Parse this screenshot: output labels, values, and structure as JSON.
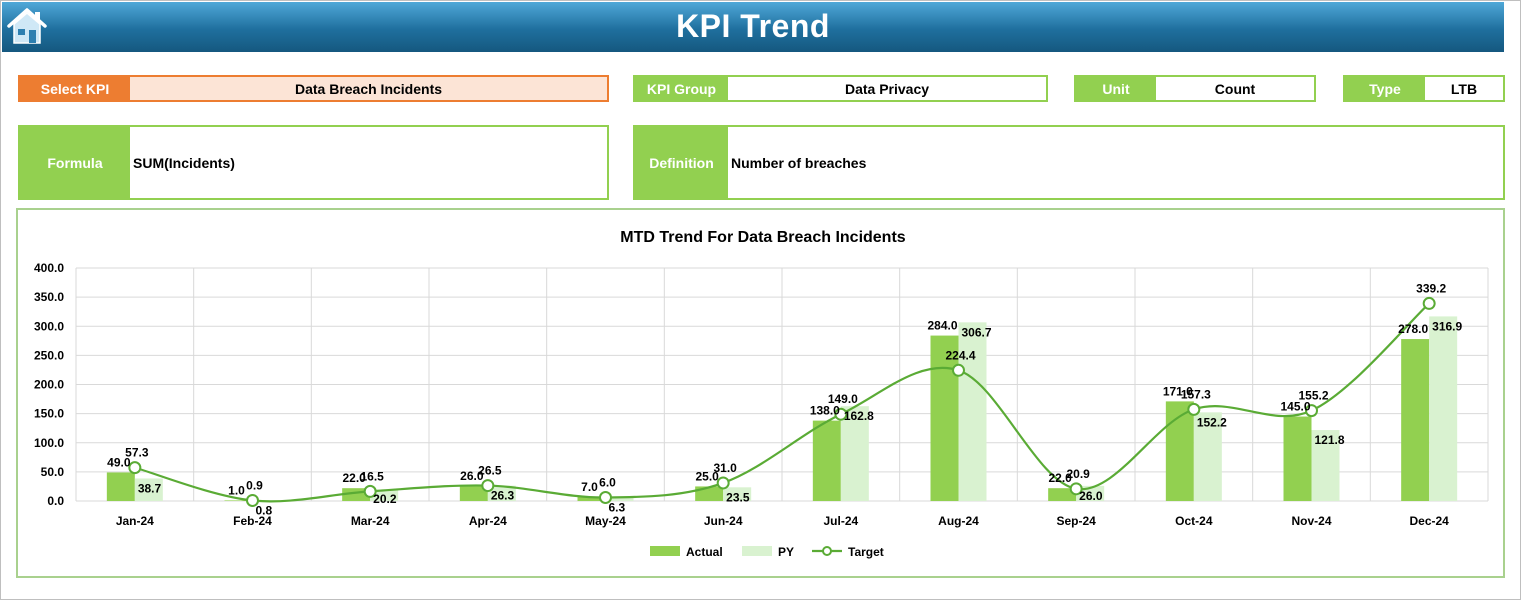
{
  "header": {
    "title": "KPI Trend"
  },
  "select_kpi": {
    "label": "Select KPI",
    "value": "Data Breach Incidents"
  },
  "kpi_group": {
    "label": "KPI Group",
    "value": "Data Privacy"
  },
  "unit": {
    "label": "Unit",
    "value": "Count"
  },
  "type": {
    "label": "Type",
    "value": "LTB"
  },
  "formula": {
    "label": "Formula",
    "value": "SUM(Incidents)"
  },
  "definition": {
    "label": "Definition",
    "value": "Number of breaches"
  },
  "colors": {
    "header": "#1f6f9e",
    "green": "#92d050",
    "orange": "#ed7d31",
    "actual": "#92d050",
    "py": "#d9f2d0",
    "target": "#5aab35"
  },
  "chart_data": {
    "type": "bar",
    "title": "MTD Trend For Data Breach Incidents",
    "categories": [
      "Jan-24",
      "Feb-24",
      "Mar-24",
      "Apr-24",
      "May-24",
      "Jun-24",
      "Jul-24",
      "Aug-24",
      "Sep-24",
      "Oct-24",
      "Nov-24",
      "Dec-24"
    ],
    "series": [
      {
        "name": "Actual",
        "type": "bar",
        "values": [
          49.0,
          1.0,
          22.0,
          26.0,
          7.0,
          25.0,
          138.0,
          284.0,
          22.0,
          171.0,
          145.0,
          278.0
        ]
      },
      {
        "name": "PY",
        "type": "bar",
        "values": [
          38.7,
          0.8,
          20.2,
          26.3,
          6.3,
          23.5,
          162.8,
          306.7,
          26.0,
          152.2,
          121.8,
          316.9
        ]
      },
      {
        "name": "Target",
        "type": "line",
        "values": [
          57.3,
          0.9,
          16.5,
          26.5,
          6.0,
          31.0,
          149.0,
          224.4,
          20.9,
          157.3,
          155.2,
          339.2
        ]
      }
    ],
    "ylim": [
      0,
      400
    ],
    "yticks": [
      "0.0",
      "50.0",
      "100.0",
      "150.0",
      "200.0",
      "250.0",
      "300.0",
      "350.0",
      "400.0"
    ],
    "grid": true,
    "legend": "bottom"
  }
}
